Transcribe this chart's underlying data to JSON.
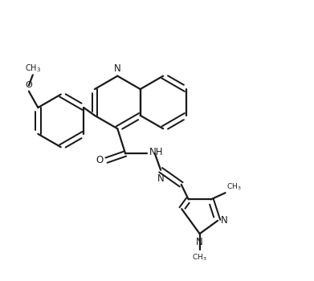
{
  "bg_color": "#ffffff",
  "line_color": "#1a1a1a",
  "line_width": 1.6,
  "figsize": [
    3.91,
    3.5
  ],
  "dpi": 100,
  "xlim": [
    0,
    11
  ],
  "ylim": [
    -0.5,
    10
  ]
}
